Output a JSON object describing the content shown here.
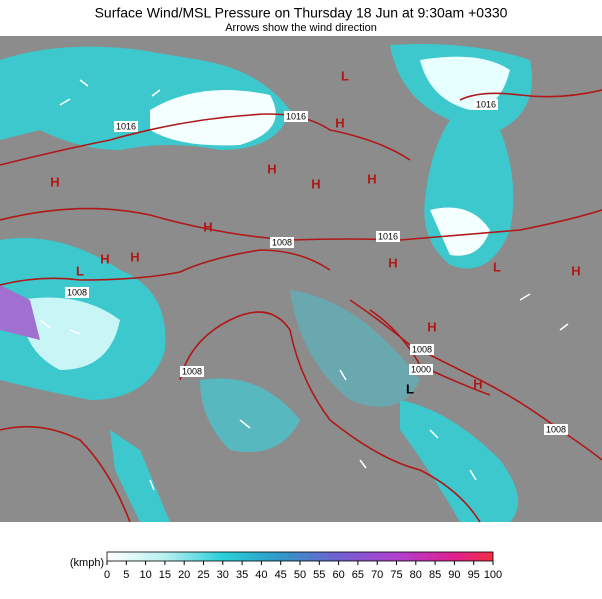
{
  "header": {
    "title": "Surface Wind/MSL Pressure on Thursday 18 Jun at 9:30am +0330",
    "subtitle": "Arrows show the wind direction"
  },
  "isobar_labels": [
    "1016",
    "1016",
    "1016",
    "1016",
    "1008",
    "1008",
    "1008",
    "1008",
    "1000",
    "1008"
  ],
  "pressure_centers": [
    "L",
    "L",
    "L",
    "L",
    "H",
    "H",
    "H",
    "H",
    "H",
    "H",
    "H",
    "H",
    "H",
    "H",
    "H",
    "H"
  ],
  "legend": {
    "unit": "(kmph)",
    "ticks": [
      0,
      5,
      10,
      15,
      20,
      25,
      30,
      35,
      40,
      45,
      50,
      55,
      60,
      65,
      70,
      75,
      80,
      85,
      90,
      95,
      100
    ]
  }
}
